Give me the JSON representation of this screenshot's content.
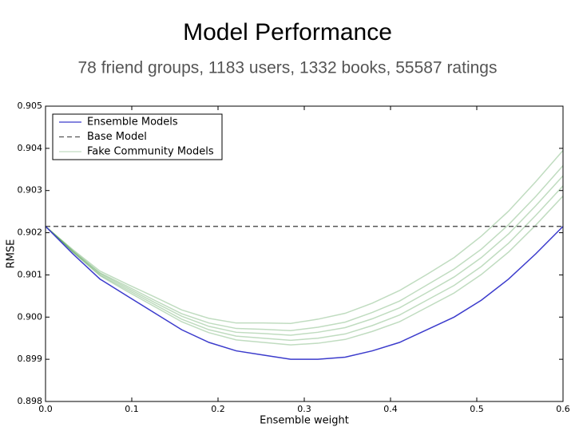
{
  "chart_data": {
    "type": "line",
    "title": "Model Performance",
    "subtitle": "78 friend groups,  1183 users,  1332 books,  55587 ratings",
    "xlabel": "Ensemble weight",
    "ylabel": "RMSE",
    "xlim": [
      0,
      0.6
    ],
    "ylim": [
      0.898,
      0.905
    ],
    "xticks": [
      {
        "value": 0,
        "label": "0.0"
      },
      0.1,
      0.2,
      0.3,
      0.4,
      0.5,
      0.6
    ],
    "yticks": [
      0.898,
      0.899,
      {
        "value": 0.9,
        "label": "0.900"
      },
      0.901,
      0.902,
      0.903,
      0.904,
      0.905
    ],
    "legend": "upper left",
    "x": [
      0,
      0.0316,
      0.0632,
      0.0947,
      0.1263,
      0.1579,
      0.1895,
      0.2211,
      0.2526,
      0.2842,
      0.3158,
      0.3474,
      0.3789,
      0.4105,
      0.4421,
      0.4737,
      0.5053,
      0.5368,
      0.5684,
      0.6
    ],
    "series": [
      {
        "name": "Ensemble Models",
        "color": "#3b3bcc",
        "values": [
          0.90215,
          0.9015,
          0.9009,
          0.9005,
          0.9001,
          0.8997,
          0.8994,
          0.8992,
          0.8991,
          0.899,
          0.899,
          0.89905,
          0.8992,
          0.8994,
          0.8997,
          0.9,
          0.9004,
          0.9009,
          0.9015,
          0.90215
        ]
      },
      {
        "name": "Base Model",
        "color": "#555555",
        "style": "dashed",
        "x": [
          0,
          0.6
        ],
        "values": [
          0.90215,
          0.90215
        ]
      },
      {
        "name": "Fake Community Models",
        "color": "#2e8b2e",
        "alpha": 0.3,
        "values": [
          [
            0.90215,
            0.90154,
            0.90098,
            0.90061,
            0.90025,
            0.89989,
            0.89963,
            0.89946,
            0.8994,
            0.89934,
            0.89938,
            0.89947,
            0.89966,
            0.89989,
            0.90023,
            0.90057,
            0.90101,
            0.90154,
            0.90218,
            0.90287
          ],
          [
            0.90215,
            0.90155,
            0.901,
            0.90065,
            0.9003,
            0.89995,
            0.8997,
            0.89955,
            0.8995,
            0.89945,
            0.8995,
            0.8996,
            0.8998,
            0.90005,
            0.9004,
            0.90075,
            0.9012,
            0.90175,
            0.90241,
            0.90311
          ],
          [
            0.90215,
            0.90156,
            0.90103,
            0.90069,
            0.90035,
            0.90002,
            0.89978,
            0.89964,
            0.89961,
            0.89957,
            0.89964,
            0.89975,
            0.89996,
            0.90022,
            0.90058,
            0.90095,
            0.90141,
            0.90197,
            0.90264,
            0.90335
          ],
          [
            0.90215,
            0.90158,
            0.90105,
            0.90073,
            0.9004,
            0.90008,
            0.89986,
            0.89973,
            0.89971,
            0.89968,
            0.89976,
            0.89988,
            0.90011,
            0.90038,
            0.90076,
            0.90114,
            0.90161,
            0.90219,
            0.90286,
            0.90359
          ],
          [
            0.90215,
            0.9016,
            0.90109,
            0.90078,
            0.90048,
            0.90017,
            0.89997,
            0.89986,
            0.89986,
            0.89985,
            0.89995,
            0.90009,
            0.90033,
            0.90063,
            0.90101,
            0.90141,
            0.90192,
            0.90251,
            0.90321,
            0.90395
          ]
        ]
      }
    ]
  }
}
